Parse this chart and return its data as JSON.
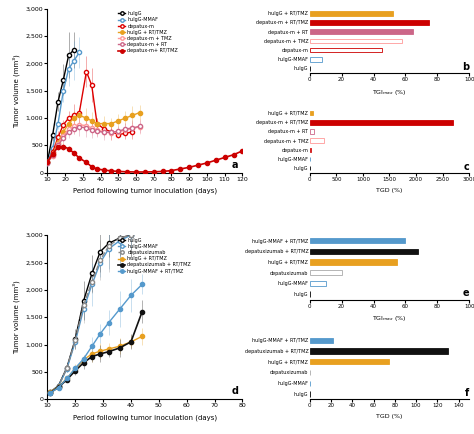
{
  "panel_b_labels": [
    "hulgG + RT/TMZ",
    "depatux-m + RT/TMZ",
    "depatux-m + RT",
    "depatux-m + TMZ",
    "depatux-m",
    "hulgG-MMAF",
    "hulgG"
  ],
  "panel_b_values": [
    52,
    75,
    65,
    58,
    45,
    8,
    0
  ],
  "panel_b_colors": [
    "#E8A020",
    "#CC0000",
    "#CC6688",
    "#FF9999",
    "#CC0000",
    "#5599CC",
    "black"
  ],
  "panel_b_filled": [
    true,
    true,
    true,
    false,
    false,
    false,
    false
  ],
  "panel_b_xlim": 100,
  "panel_c_labels": [
    "hulgG + RT/TMZ",
    "depatux-m + RT/TMZ",
    "depatux-m + RT",
    "depatux-m + TMZ",
    "depatux-m",
    "hulgG-MMAF",
    "hulgG"
  ],
  "panel_c_values": [
    55,
    2700,
    80,
    270,
    30,
    0,
    0
  ],
  "panel_c_colors": [
    "#E8A020",
    "#CC0000",
    "#CC6688",
    "#FF9999",
    "#CC0000",
    "#5599CC",
    "black"
  ],
  "panel_c_filled": [
    true,
    true,
    false,
    false,
    false,
    false,
    false
  ],
  "panel_c_xlim": 3000,
  "panel_e_labels": [
    "hulgG-MMAF + RT/TMZ",
    "depatuxizumab + RT/TMZ",
    "hulgG + RT/TMZ",
    "depatuxizumab",
    "hulgG-MMAF",
    "hulgG"
  ],
  "panel_e_values": [
    60,
    68,
    55,
    20,
    10,
    0
  ],
  "panel_e_colors": [
    "#5599CC",
    "#111111",
    "#E8A020",
    "#AAAAAA",
    "#5599CC",
    "black"
  ],
  "panel_e_filled": [
    true,
    true,
    true,
    false,
    false,
    false
  ],
  "panel_e_xlim": 100,
  "panel_f_labels": [
    "hulgG-MMAF + RT/TMZ",
    "depatuxizumab + RT/TMZ",
    "hulgG + RT/TMZ",
    "depatuxizumab",
    "hulgG-MMAF",
    "hulgG"
  ],
  "panel_f_values": [
    22,
    130,
    75,
    0,
    0,
    0
  ],
  "panel_f_colors": [
    "#5599CC",
    "#111111",
    "#E8A020",
    "#AAAAAA",
    "#5599CC",
    "black"
  ],
  "panel_f_filled": [
    true,
    true,
    true,
    false,
    false,
    false
  ],
  "panel_f_xlim": 150,
  "ylabel_vol": "Tumor volume (mm³)",
  "xlabel_days": "Period following tumor inoculation (days)",
  "ylim_vol": [
    0,
    3000
  ],
  "yticks_vol": [
    0,
    500,
    1000,
    1500,
    2000,
    2500,
    3000
  ],
  "ytick_labels": [
    "0",
    "500",
    "1,000",
    "1,500",
    "2,000",
    "2,500",
    "3,000"
  ],
  "top_ax_xticks": [
    10,
    20,
    30,
    40,
    50,
    60,
    70,
    80,
    90,
    100,
    110,
    120
  ],
  "bottom_ax_xticks": [
    10,
    20,
    30,
    40,
    50,
    60,
    70,
    80
  ]
}
